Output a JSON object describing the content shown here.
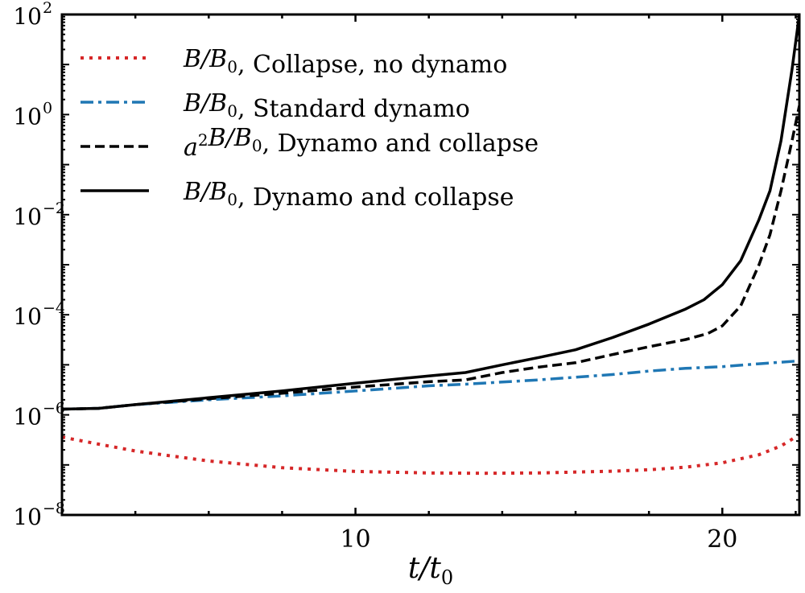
{
  "chart_data": {
    "type": "line",
    "xlabel": "t/t0",
    "ylabel": "",
    "xscale": "linear",
    "yscale": "log",
    "xlim": [
      2,
      22.1
    ],
    "ylim": [
      1e-08,
      100
    ],
    "xticks": [
      10,
      20
    ],
    "xtick_labels": [
      "10",
      "20"
    ],
    "yticks": [
      -8,
      -6,
      -4,
      -2,
      0,
      2
    ],
    "ytick_labels": [
      "10^-8",
      "10^-6",
      "10^-4",
      "10^-2",
      "10^0",
      "10^2"
    ],
    "grid": false,
    "legend_placement": "top-left",
    "series": [
      {
        "name": "B/B0, Collapse, no dynamo",
        "color": "#d62728",
        "style": "dotted",
        "x": [
          2,
          3,
          4,
          5,
          6,
          8,
          10,
          12,
          13.5,
          15,
          17,
          18,
          19,
          20,
          21,
          21.6,
          22.1
        ],
        "y": [
          3.6e-07,
          2.6e-07,
          1.9e-07,
          1.5e-07,
          1.2e-07,
          8.8e-08,
          7.4e-08,
          6.9e-08,
          6.8e-08,
          6.9e-08,
          7.5e-08,
          8e-08,
          9e-08,
          1.1e-07,
          1.6e-07,
          2.4e-07,
          4e-07
        ]
      },
      {
        "name": "B/B0, Standard dynamo",
        "color": "#1f77b4",
        "style": "dashdot",
        "x": [
          2,
          3,
          4,
          6,
          8,
          10,
          12,
          13,
          15,
          17,
          18,
          19,
          20,
          21,
          22.1
        ],
        "y": [
          1.3e-06,
          1.35e-06,
          1.6e-06,
          2e-06,
          2.4e-06,
          3e-06,
          3.8e-06,
          4.1e-06,
          5e-06,
          6.4e-06,
          7.5e-06,
          8.5e-06,
          9.2e-06,
          1.05e-05,
          1.2e-05
        ]
      },
      {
        "name": "a^2B/B0, Dynamo and collapse",
        "color": "#000000",
        "style": "dashed",
        "x": [
          2,
          3,
          4,
          6,
          8,
          10,
          12,
          13,
          14,
          15,
          16,
          17,
          18,
          19,
          19.6,
          20,
          20.5,
          21,
          21.3,
          21.6,
          21.9,
          22.1
        ],
        "y": [
          1.3e-06,
          1.35e-06,
          1.6e-06,
          2.1e-06,
          2.7e-06,
          3.6e-06,
          4.6e-06,
          5e-06,
          7e-06,
          9e-06,
          1.1e-05,
          1.6e-05,
          2.3e-05,
          3.2e-05,
          4.2e-05,
          6e-05,
          0.00015,
          0.001,
          0.004,
          0.03,
          0.3,
          1.5
        ]
      },
      {
        "name": "B/B0, Dynamo and collapse",
        "color": "#000000",
        "style": "solid",
        "x": [
          2,
          3,
          4,
          6,
          8,
          10,
          12,
          13,
          14,
          15,
          16,
          17,
          18,
          19,
          19.5,
          20,
          20.5,
          21,
          21.3,
          21.6,
          21.9,
          22.1
        ],
        "y": [
          1.3e-06,
          1.35e-06,
          1.6e-06,
          2.2e-06,
          3e-06,
          4.3e-06,
          6e-06,
          7e-06,
          1e-05,
          1.4e-05,
          2e-05,
          3.5e-05,
          6.5e-05,
          0.00013,
          0.0002,
          0.0004,
          0.0012,
          0.008,
          0.03,
          0.3,
          8,
          100
        ]
      }
    ]
  }
}
